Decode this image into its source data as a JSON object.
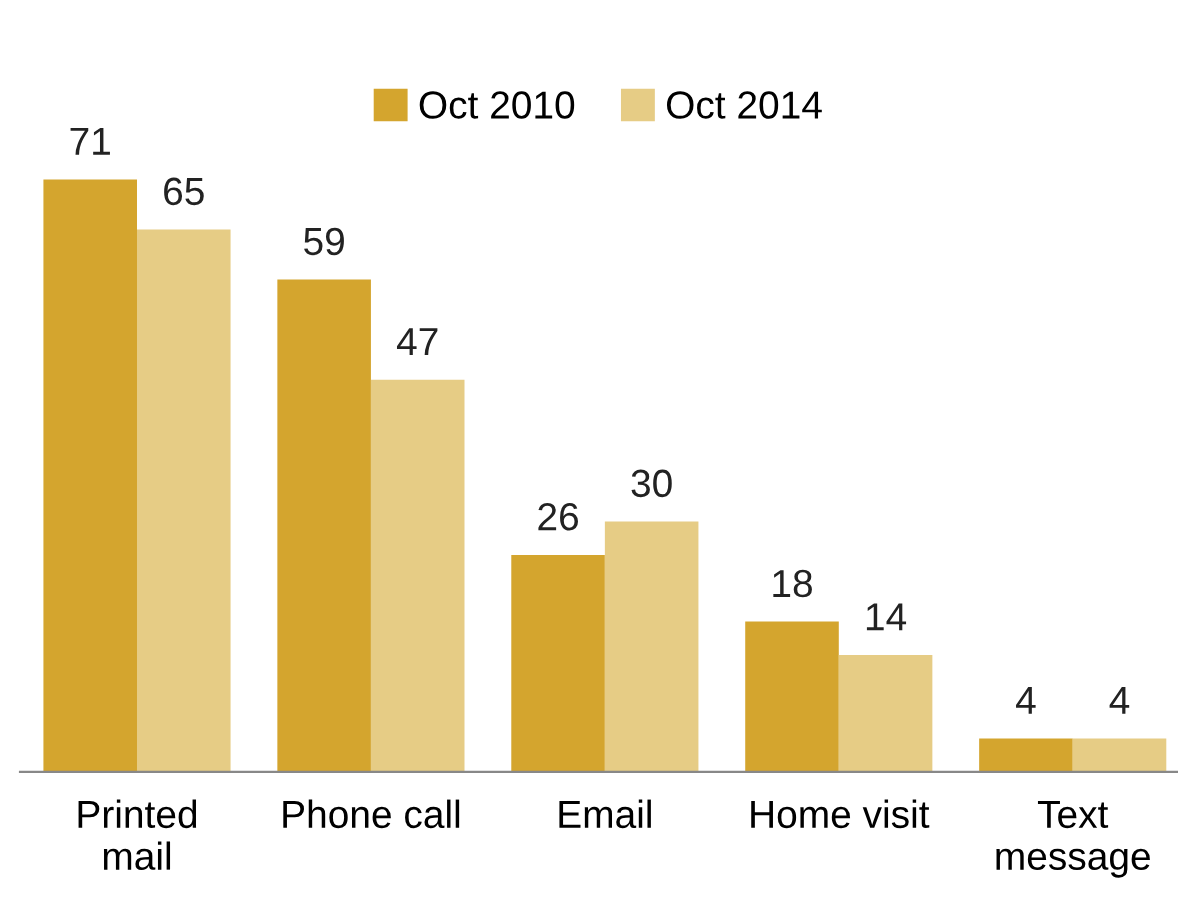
{
  "chart_data": {
    "type": "bar",
    "categories": [
      "Printed\nmail",
      "Phone call",
      "Email",
      "Home visit",
      "Text\nmessage"
    ],
    "series": [
      {
        "name": "Oct 2010",
        "color": "#d4a52e",
        "values": [
          71,
          59,
          26,
          18,
          4
        ]
      },
      {
        "name": "Oct 2014",
        "color": "#e6cc85",
        "values": [
          65,
          47,
          30,
          14,
          4
        ]
      }
    ],
    "data_labels": true,
    "grid": false,
    "legend": "top"
  }
}
